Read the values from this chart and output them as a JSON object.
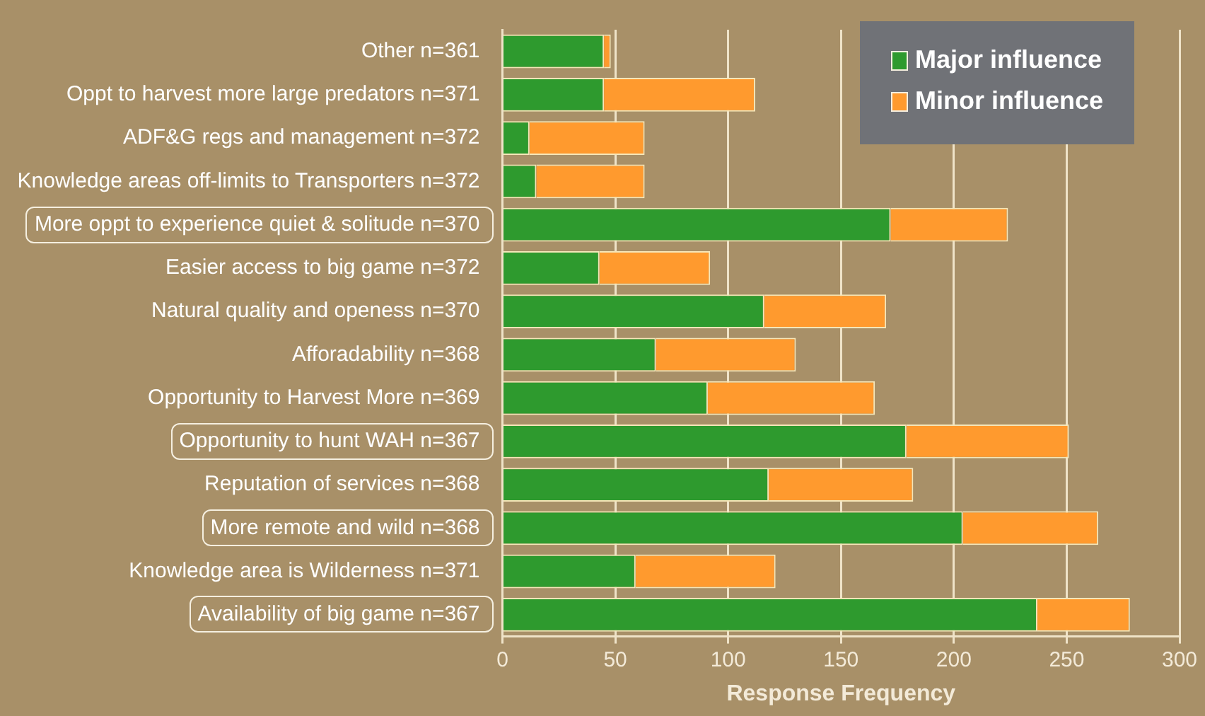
{
  "chart_data": {
    "type": "bar",
    "orientation": "horizontal",
    "stacked": true,
    "xlabel": "Response Frequency",
    "categories": [
      "Other n=361",
      "Oppt to harvest more large predators n=371",
      "ADF&G regs and management n=372",
      "Knowledge areas off-limits to Transporters n=372",
      "More oppt to experience quiet & solitude n=370",
      "Easier access to big game n=372",
      "Natural quality and openess n=370",
      "Afforadability n=368",
      "Opportunity to Harvest More n=369",
      "Opportunity to hunt WAH n=367",
      "Reputation of services n=368",
      "More remote and wild n=368",
      "Knowledge area is Wilderness n=371",
      "Availability of big game n=367"
    ],
    "series": [
      {
        "name": "Major influence",
        "color": "#2e9a2e",
        "values": [
          45,
          45,
          12,
          15,
          172,
          43,
          116,
          68,
          91,
          179,
          118,
          204,
          59,
          237
        ]
      },
      {
        "name": "Minor influence",
        "color": "#ff9a2e",
        "values": [
          3,
          67,
          51,
          48,
          52,
          49,
          54,
          62,
          74,
          72,
          64,
          60,
          62,
          41
        ]
      }
    ],
    "xlim": [
      0,
      300
    ],
    "xticks": [
      0,
      50,
      100,
      150,
      200,
      250,
      300
    ],
    "grid": "x",
    "legend": "top right"
  }
}
